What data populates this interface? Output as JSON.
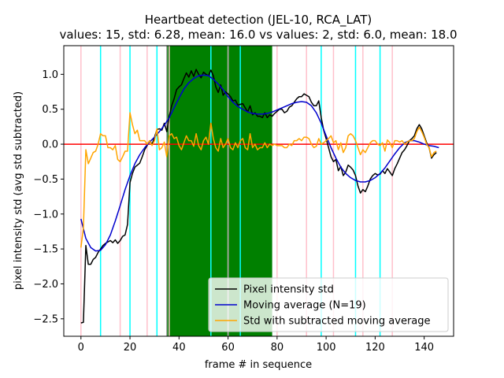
{
  "chart_data": {
    "type": "line",
    "title": "Heartbeat detection (JEL-10, RCA_LAT)",
    "subtitle": "values: 15, std: 6.28, mean: 16.0 vs values: 2, std: 6.0, mean: 18.0",
    "xlabel": "frame # in sequence",
    "ylabel": "pixel intensity std (avg std subtracted)",
    "xlim": [
      -7,
      152
    ],
    "ylim": [
      -2.75,
      1.41
    ],
    "xticks": [
      0,
      20,
      40,
      60,
      80,
      100,
      120,
      140
    ],
    "yticks": [
      -2.5,
      -2.0,
      -1.5,
      -1.0,
      -0.5,
      0.0,
      0.5,
      1.0
    ],
    "ytick_labels": [
      "−2.5",
      "−2.0",
      "−1.5",
      "−1.0",
      "−0.5",
      "0.0",
      "0.5",
      "1.0"
    ],
    "grid": false,
    "legend_position": "lower-right",
    "zero_line": {
      "y": 0,
      "color": "#ff0000"
    },
    "shaded_region": {
      "x_start": 35,
      "x_end": 78,
      "color": "#008000"
    },
    "pink_lines": [
      0,
      16,
      27,
      36,
      53,
      60,
      80,
      92,
      103,
      115,
      127
    ],
    "cyan_lines": [
      8,
      20,
      31,
      53,
      65,
      98,
      112,
      122
    ],
    "gray_lines": [
      35,
      60
    ],
    "series": [
      {
        "name": "Pixel intensity std",
        "color": "#000000",
        "x": [
          0,
          1,
          2,
          3,
          4,
          5,
          6,
          7,
          8,
          9,
          10,
          11,
          12,
          13,
          14,
          15,
          16,
          17,
          18,
          19,
          20,
          21,
          22,
          23,
          24,
          25,
          26,
          27,
          28,
          29,
          30,
          31,
          32,
          33,
          34,
          35,
          36,
          37,
          38,
          39,
          40,
          41,
          42,
          43,
          44,
          45,
          46,
          47,
          48,
          49,
          50,
          51,
          52,
          53,
          54,
          55,
          56,
          57,
          58,
          59,
          60,
          61,
          62,
          63,
          64,
          65,
          66,
          67,
          68,
          69,
          70,
          71,
          72,
          73,
          74,
          75,
          76,
          77,
          78,
          79,
          80,
          81,
          82,
          83,
          84,
          85,
          86,
          87,
          88,
          89,
          90,
          91,
          92,
          93,
          94,
          95,
          96,
          97,
          98,
          99,
          100,
          101,
          102,
          103,
          104,
          105,
          106,
          107,
          108,
          109,
          110,
          111,
          112,
          113,
          114,
          115,
          116,
          117,
          118,
          119,
          120,
          121,
          122,
          123,
          124,
          125,
          126,
          127,
          128,
          129,
          130,
          131,
          132,
          133,
          134,
          135,
          136,
          137,
          138,
          139,
          140,
          141,
          142,
          143,
          144,
          145
        ],
        "values": [
          -2.56,
          -2.55,
          -1.45,
          -1.72,
          -1.72,
          -1.65,
          -1.62,
          -1.55,
          -1.5,
          -1.45,
          -1.42,
          -1.4,
          -1.38,
          -1.41,
          -1.37,
          -1.42,
          -1.38,
          -1.32,
          -1.3,
          -1.15,
          -0.55,
          -0.42,
          -0.33,
          -0.3,
          -0.27,
          -0.18,
          -0.08,
          -0.02,
          0.05,
          0.0,
          0.1,
          0.21,
          0.22,
          0.2,
          0.3,
          0.18,
          0.4,
          0.55,
          0.65,
          0.78,
          0.82,
          0.85,
          0.94,
          1.02,
          0.96,
          1.05,
          0.97,
          1.07,
          1.0,
          0.95,
          1.03,
          1.0,
          0.98,
          1.06,
          0.98,
          0.82,
          0.74,
          0.85,
          0.7,
          0.75,
          0.72,
          0.68,
          0.62,
          0.63,
          0.56,
          0.57,
          0.58,
          0.52,
          0.46,
          0.55,
          0.42,
          0.45,
          0.4,
          0.4,
          0.38,
          0.45,
          0.38,
          0.42,
          0.4,
          0.44,
          0.47,
          0.5,
          0.5,
          0.45,
          0.47,
          0.53,
          0.55,
          0.6,
          0.65,
          0.68,
          0.68,
          0.72,
          0.7,
          0.68,
          0.6,
          0.55,
          0.55,
          0.62,
          0.38,
          0.2,
          0.08,
          -0.05,
          -0.18,
          -0.25,
          -0.22,
          -0.38,
          -0.32,
          -0.45,
          -0.4,
          -0.3,
          -0.33,
          -0.37,
          -0.45,
          -0.6,
          -0.7,
          -0.65,
          -0.68,
          -0.6,
          -0.5,
          -0.45,
          -0.42,
          -0.44,
          -0.43,
          -0.38,
          -0.42,
          -0.35,
          -0.4,
          -0.45,
          -0.35,
          -0.28,
          -0.2,
          -0.12,
          -0.08,
          -0.02,
          0.05,
          0.08,
          0.12,
          0.22,
          0.28,
          0.22,
          0.12,
          0.02,
          -0.05,
          -0.2,
          -0.15,
          -0.12
        ]
      },
      {
        "name": "Moving average (N=19)",
        "color": "#0000cd",
        "x": [
          0,
          2,
          4,
          6,
          8,
          10,
          12,
          14,
          16,
          18,
          20,
          22,
          24,
          26,
          28,
          30,
          32,
          34,
          36,
          38,
          40,
          42,
          44,
          46,
          48,
          50,
          52,
          54,
          56,
          58,
          60,
          62,
          64,
          66,
          68,
          70,
          72,
          74,
          76,
          78,
          80,
          82,
          84,
          86,
          88,
          90,
          92,
          94,
          96,
          98,
          100,
          102,
          104,
          106,
          108,
          110,
          112,
          114,
          116,
          118,
          120,
          122,
          124,
          126,
          128,
          130,
          132,
          134,
          136,
          138,
          140,
          142,
          144,
          146
        ],
        "values": [
          -1.07,
          -1.35,
          -1.48,
          -1.53,
          -1.52,
          -1.44,
          -1.3,
          -1.1,
          -0.88,
          -0.65,
          -0.45,
          -0.28,
          -0.15,
          -0.05,
          0.03,
          0.1,
          0.18,
          0.27,
          0.38,
          0.52,
          0.66,
          0.79,
          0.88,
          0.94,
          0.98,
          0.99,
          0.98,
          0.93,
          0.86,
          0.78,
          0.68,
          0.6,
          0.54,
          0.5,
          0.46,
          0.44,
          0.43,
          0.43,
          0.44,
          0.46,
          0.49,
          0.52,
          0.55,
          0.58,
          0.6,
          0.61,
          0.6,
          0.55,
          0.45,
          0.3,
          0.12,
          -0.05,
          -0.2,
          -0.33,
          -0.42,
          -0.48,
          -0.52,
          -0.54,
          -0.54,
          -0.52,
          -0.48,
          -0.42,
          -0.34,
          -0.24,
          -0.14,
          -0.05,
          0.02,
          0.05,
          0.05,
          0.03,
          0.0,
          -0.02,
          -0.03,
          -0.05
        ]
      },
      {
        "name": "Std with subtracted moving average",
        "color": "#ffa500",
        "x": [
          0,
          1,
          2,
          3,
          4,
          5,
          6,
          7,
          8,
          9,
          10,
          11,
          12,
          13,
          14,
          15,
          16,
          17,
          18,
          19,
          20,
          21,
          22,
          23,
          24,
          25,
          26,
          27,
          28,
          29,
          30,
          31,
          32,
          33,
          34,
          35,
          36,
          37,
          38,
          39,
          40,
          41,
          42,
          43,
          44,
          45,
          46,
          47,
          48,
          49,
          50,
          51,
          52,
          53,
          54,
          55,
          56,
          57,
          58,
          59,
          60,
          61,
          62,
          63,
          64,
          65,
          66,
          67,
          68,
          69,
          70,
          71,
          72,
          73,
          74,
          75,
          76,
          77,
          78,
          79,
          80,
          81,
          82,
          83,
          84,
          85,
          86,
          87,
          88,
          89,
          90,
          91,
          92,
          93,
          94,
          95,
          96,
          97,
          98,
          99,
          100,
          101,
          102,
          103,
          104,
          105,
          106,
          107,
          108,
          109,
          110,
          111,
          112,
          113,
          114,
          115,
          116,
          117,
          118,
          119,
          120,
          121,
          122,
          123,
          124,
          125,
          126,
          127,
          128,
          129,
          130,
          131,
          132,
          133,
          134,
          135,
          136,
          137,
          138,
          139,
          140,
          141,
          142,
          143,
          144,
          145
        ],
        "values": [
          -1.48,
          -1.2,
          -0.08,
          -0.28,
          -0.2,
          -0.12,
          -0.1,
          0.0,
          0.15,
          0.12,
          0.12,
          -0.05,
          -0.05,
          -0.08,
          -0.02,
          -0.22,
          -0.25,
          -0.18,
          -0.1,
          -0.1,
          0.45,
          0.28,
          0.15,
          0.2,
          0.05,
          0.05,
          0.05,
          0.0,
          0.05,
          -0.02,
          0.05,
          0.22,
          -0.08,
          -0.05,
          0.03,
          -0.18,
          0.12,
          0.15,
          0.08,
          0.1,
          -0.02,
          -0.08,
          0.02,
          0.12,
          0.05,
          0.05,
          -0.03,
          0.15,
          -0.02,
          -0.08,
          0.05,
          0.1,
          0.0,
          0.3,
          0.08,
          -0.05,
          -0.1,
          0.08,
          -0.05,
          0.0,
          0.08,
          -0.05,
          -0.08,
          0.02,
          -0.05,
          0.05,
          0.08,
          -0.05,
          -0.08,
          0.15,
          -0.05,
          0.0,
          -0.08,
          -0.05,
          -0.05,
          0.02,
          -0.05,
          0.0,
          -0.02,
          0.0,
          -0.02,
          -0.02,
          -0.02,
          -0.05,
          -0.05,
          0.0,
          -0.02,
          0.05,
          0.05,
          0.08,
          0.05,
          0.1,
          0.1,
          0.08,
          0.0,
          -0.05,
          -0.03,
          0.08,
          0.0,
          0.02,
          0.05,
          0.08,
          0.12,
          0.02,
          0.05,
          -0.08,
          0.02,
          -0.12,
          -0.05,
          0.12,
          0.15,
          0.12,
          0.05,
          -0.05,
          -0.15,
          -0.08,
          -0.12,
          -0.05,
          0.02,
          0.05,
          0.05,
          0.0,
          -0.02,
          0.02,
          -0.1,
          0.06,
          0.02,
          -0.05,
          0.05,
          0.05,
          0.03,
          0.05,
          0.0,
          0.03,
          0.05,
          0.05,
          0.08,
          0.18,
          0.24,
          0.18,
          0.1,
          0.0,
          -0.05,
          -0.18,
          -0.12,
          -0.1
        ]
      }
    ]
  }
}
